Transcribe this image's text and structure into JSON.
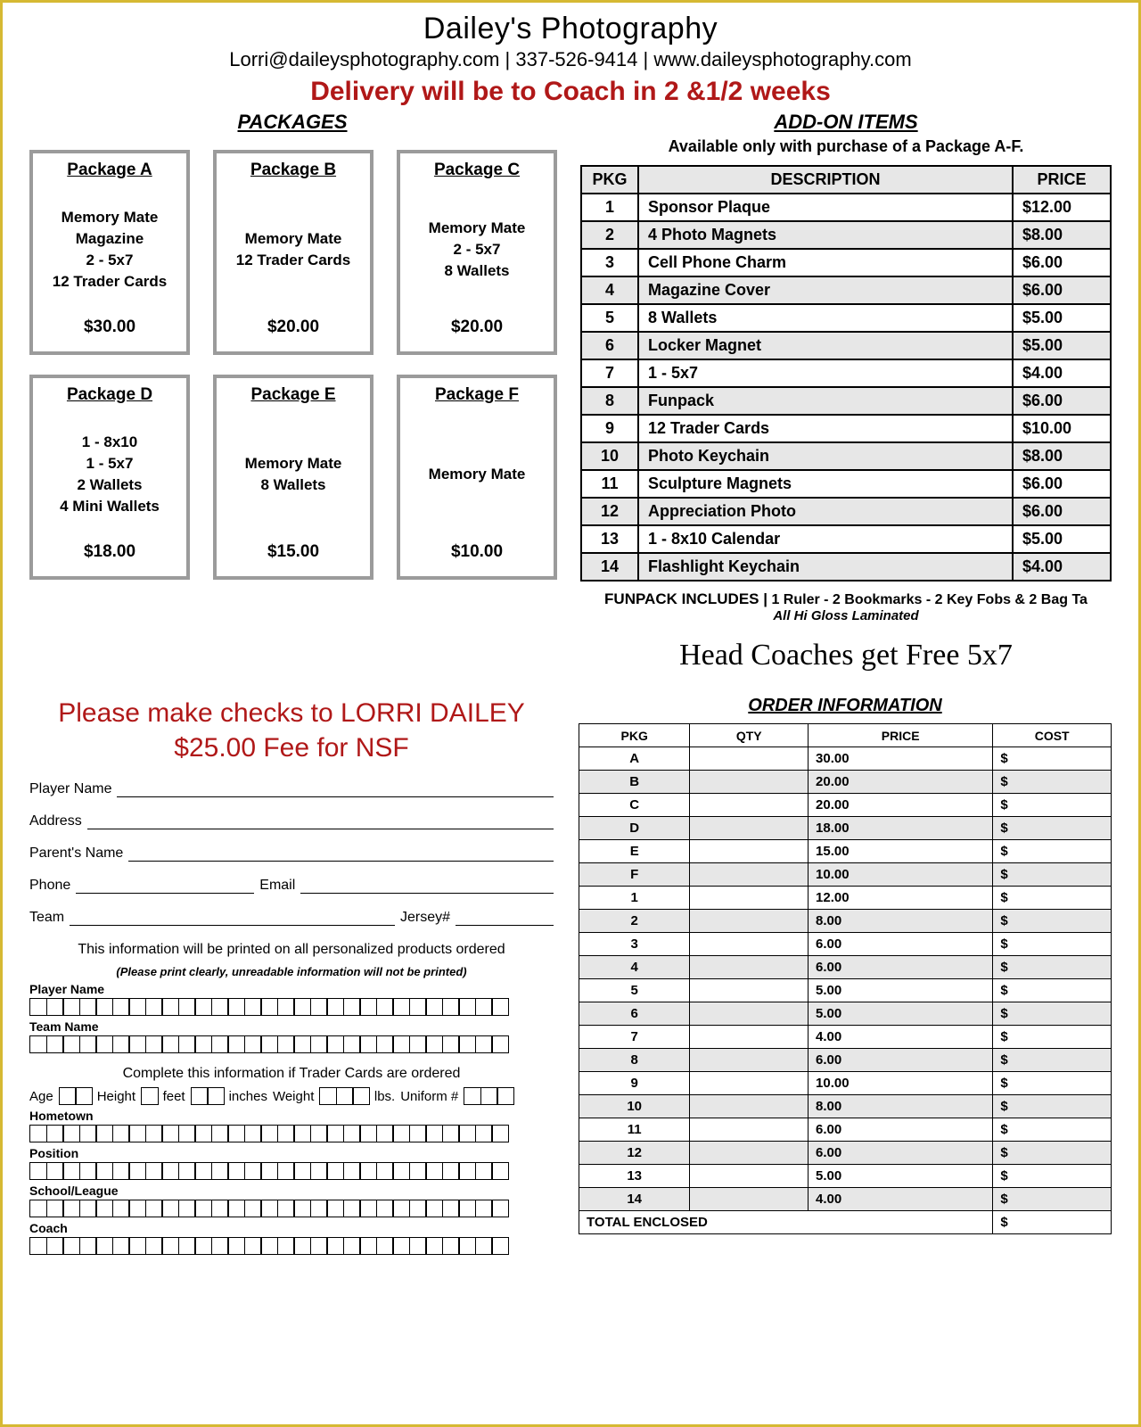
{
  "header": {
    "title": "Dailey's Photography",
    "contact": "Lorri@daileysphotography.com | 337-526-9414 | www.daileysphotography.com",
    "delivery": "Delivery will be to Coach in 2 &1/2 weeks"
  },
  "packages_title": "PACKAGES",
  "packages": [
    {
      "name": "Package A",
      "body": "Memory Mate\nMagazine\n2 - 5x7\n12 Trader Cards",
      "price": "$30.00"
    },
    {
      "name": "Package B",
      "body": "Memory Mate\n12 Trader Cards",
      "price": "$20.00"
    },
    {
      "name": "Package C",
      "body": "Memory Mate\n2 - 5x7\n8  Wallets",
      "price": "$20.00"
    },
    {
      "name": "Package D",
      "body": "1 - 8x10\n1 - 5x7\n2 Wallets\n4 Mini Wallets",
      "price": "$18.00"
    },
    {
      "name": "Package E",
      "body": "Memory Mate\n8 Wallets",
      "price": "$15.00"
    },
    {
      "name": "Package F",
      "body": "Memory Mate",
      "price": "$10.00"
    }
  ],
  "addon": {
    "title": "ADD-ON ITEMS",
    "subtitle": "Available only with purchase of a Package A-F.",
    "headers": [
      "PKG",
      "DESCRIPTION",
      "PRICE"
    ],
    "rows": [
      [
        "1",
        "Sponsor Plaque",
        "$12.00"
      ],
      [
        "2",
        "4 Photo Magnets",
        "$8.00"
      ],
      [
        "3",
        "Cell Phone Charm",
        "$6.00"
      ],
      [
        "4",
        "Magazine Cover",
        "$6.00"
      ],
      [
        "5",
        "8 Wallets",
        "$5.00"
      ],
      [
        "6",
        "Locker Magnet",
        "$5.00"
      ],
      [
        "7",
        "1 - 5x7",
        "$4.00"
      ],
      [
        "8",
        "Funpack",
        "$6.00"
      ],
      [
        "9",
        "12 Trader Cards",
        "$10.00"
      ],
      [
        "10",
        "Photo Keychain",
        "$8.00"
      ],
      [
        "11",
        "Sculpture Magnets",
        "$6.00"
      ],
      [
        "12",
        "Appreciation Photo",
        "$6.00"
      ],
      [
        "13",
        "1 - 8x10 Calendar",
        "$5.00"
      ],
      [
        "14",
        "Flashlight Keychain",
        "$4.00"
      ]
    ]
  },
  "funpack": {
    "label": "FUNPACK INCLUDES |",
    "text": "1 Ruler - 2 Bookmarks - 2 Key Fobs & 2 Bag Ta",
    "sub": "All Hi Gloss Laminated"
  },
  "coaches": "Head Coaches get Free 5x7",
  "checks": {
    "line1": "Please make checks to LORRI DAILEY",
    "line2": "$25.00 Fee for NSF"
  },
  "form": {
    "player": "Player Name",
    "address": "Address",
    "parent": "Parent's Name",
    "phone": "Phone",
    "email": "Email",
    "team": "Team",
    "jersey": "Jersey#"
  },
  "print": {
    "note": "This information will be printed on all personalized products ordered",
    "sub": "(Please print clearly, unreadable information will not be printed)",
    "fields": [
      "Player Name",
      "Team Name"
    ]
  },
  "trader": {
    "note": "Complete this information if Trader Cards are ordered",
    "age": "Age",
    "height": "Height",
    "feet": "feet",
    "inches": "inches",
    "weight": "Weight",
    "lbs": "lbs.",
    "uniform": "Uniform #",
    "fields": [
      "Hometown",
      "Position",
      "School/League",
      "Coach"
    ]
  },
  "order": {
    "title": "ORDER INFORMATION",
    "headers": [
      "PKG",
      "QTY",
      "PRICE",
      "COST"
    ],
    "rows": [
      [
        "A",
        "",
        "30.00",
        "$"
      ],
      [
        "B",
        "",
        "20.00",
        "$"
      ],
      [
        "C",
        "",
        "20.00",
        "$"
      ],
      [
        "D",
        "",
        "18.00",
        "$"
      ],
      [
        "E",
        "",
        "15.00",
        "$"
      ],
      [
        "F",
        "",
        "10.00",
        "$"
      ],
      [
        "1",
        "",
        "12.00",
        "$"
      ],
      [
        "2",
        "",
        "8.00",
        "$"
      ],
      [
        "3",
        "",
        "6.00",
        "$"
      ],
      [
        "4",
        "",
        "6.00",
        "$"
      ],
      [
        "5",
        "",
        "5.00",
        "$"
      ],
      [
        "6",
        "",
        "5.00",
        "$"
      ],
      [
        "7",
        "",
        "4.00",
        "$"
      ],
      [
        "8",
        "",
        "6.00",
        "$"
      ],
      [
        "9",
        "",
        "10.00",
        "$"
      ],
      [
        "10",
        "",
        "8.00",
        "$"
      ],
      [
        "11",
        "",
        "6.00",
        "$"
      ],
      [
        "12",
        "",
        "6.00",
        "$"
      ],
      [
        "13",
        "",
        "5.00",
        "$"
      ],
      [
        "14",
        "",
        "4.00",
        "$"
      ]
    ],
    "total_label": "TOTAL ENCLOSED",
    "total_value": "$"
  }
}
